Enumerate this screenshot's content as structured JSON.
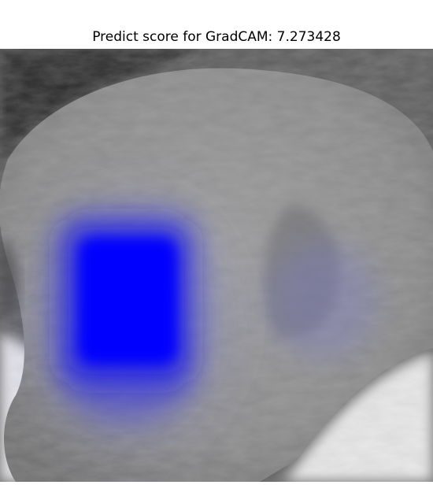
{
  "figure": {
    "title": "Predict score for GradCAM: 7.273428",
    "overlay_color": "#0000ff",
    "image_tone": "#8e8e8e"
  }
}
